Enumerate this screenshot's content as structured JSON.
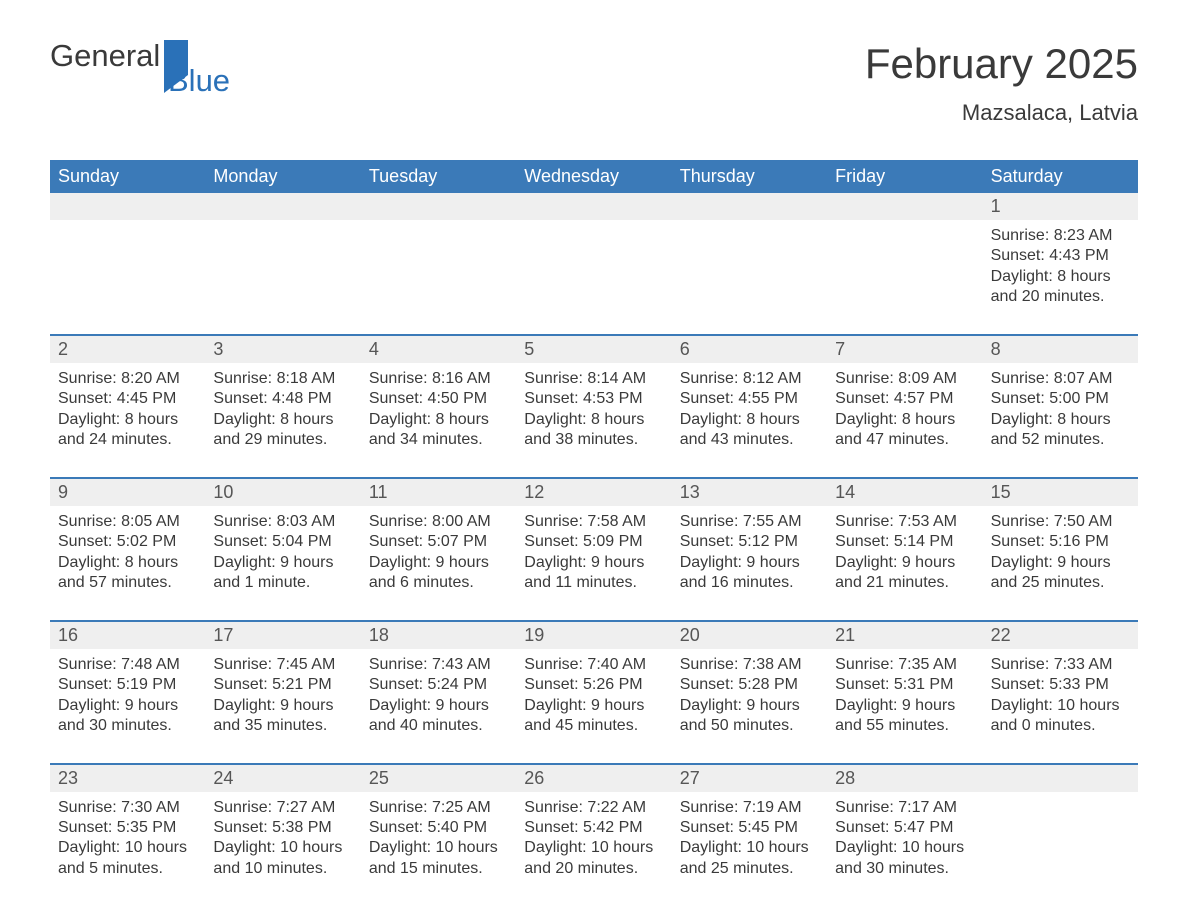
{
  "brand": {
    "word1": "General",
    "word2": "Blue"
  },
  "title": "February 2025",
  "location": "Mazsalaca, Latvia",
  "colors": {
    "header_bg": "#3b7ab8",
    "header_text": "#ffffff",
    "rule": "#3b7ab8",
    "daynum_bg": "#efefef",
    "text": "#3a3a3a"
  },
  "dow": [
    "Sunday",
    "Monday",
    "Tuesday",
    "Wednesday",
    "Thursday",
    "Friday",
    "Saturday"
  ],
  "weeks": [
    [
      null,
      null,
      null,
      null,
      null,
      null,
      {
        "n": "1",
        "sunrise": "8:23 AM",
        "sunset": "4:43 PM",
        "dl1": "Daylight: 8 hours",
        "dl2": "and 20 minutes."
      }
    ],
    [
      {
        "n": "2",
        "sunrise": "8:20 AM",
        "sunset": "4:45 PM",
        "dl1": "Daylight: 8 hours",
        "dl2": "and 24 minutes."
      },
      {
        "n": "3",
        "sunrise": "8:18 AM",
        "sunset": "4:48 PM",
        "dl1": "Daylight: 8 hours",
        "dl2": "and 29 minutes."
      },
      {
        "n": "4",
        "sunrise": "8:16 AM",
        "sunset": "4:50 PM",
        "dl1": "Daylight: 8 hours",
        "dl2": "and 34 minutes."
      },
      {
        "n": "5",
        "sunrise": "8:14 AM",
        "sunset": "4:53 PM",
        "dl1": "Daylight: 8 hours",
        "dl2": "and 38 minutes."
      },
      {
        "n": "6",
        "sunrise": "8:12 AM",
        "sunset": "4:55 PM",
        "dl1": "Daylight: 8 hours",
        "dl2": "and 43 minutes."
      },
      {
        "n": "7",
        "sunrise": "8:09 AM",
        "sunset": "4:57 PM",
        "dl1": "Daylight: 8 hours",
        "dl2": "and 47 minutes."
      },
      {
        "n": "8",
        "sunrise": "8:07 AM",
        "sunset": "5:00 PM",
        "dl1": "Daylight: 8 hours",
        "dl2": "and 52 minutes."
      }
    ],
    [
      {
        "n": "9",
        "sunrise": "8:05 AM",
        "sunset": "5:02 PM",
        "dl1": "Daylight: 8 hours",
        "dl2": "and 57 minutes."
      },
      {
        "n": "10",
        "sunrise": "8:03 AM",
        "sunset": "5:04 PM",
        "dl1": "Daylight: 9 hours",
        "dl2": "and 1 minute."
      },
      {
        "n": "11",
        "sunrise": "8:00 AM",
        "sunset": "5:07 PM",
        "dl1": "Daylight: 9 hours",
        "dl2": "and 6 minutes."
      },
      {
        "n": "12",
        "sunrise": "7:58 AM",
        "sunset": "5:09 PM",
        "dl1": "Daylight: 9 hours",
        "dl2": "and 11 minutes."
      },
      {
        "n": "13",
        "sunrise": "7:55 AM",
        "sunset": "5:12 PM",
        "dl1": "Daylight: 9 hours",
        "dl2": "and 16 minutes."
      },
      {
        "n": "14",
        "sunrise": "7:53 AM",
        "sunset": "5:14 PM",
        "dl1": "Daylight: 9 hours",
        "dl2": "and 21 minutes."
      },
      {
        "n": "15",
        "sunrise": "7:50 AM",
        "sunset": "5:16 PM",
        "dl1": "Daylight: 9 hours",
        "dl2": "and 25 minutes."
      }
    ],
    [
      {
        "n": "16",
        "sunrise": "7:48 AM",
        "sunset": "5:19 PM",
        "dl1": "Daylight: 9 hours",
        "dl2": "and 30 minutes."
      },
      {
        "n": "17",
        "sunrise": "7:45 AM",
        "sunset": "5:21 PM",
        "dl1": "Daylight: 9 hours",
        "dl2": "and 35 minutes."
      },
      {
        "n": "18",
        "sunrise": "7:43 AM",
        "sunset": "5:24 PM",
        "dl1": "Daylight: 9 hours",
        "dl2": "and 40 minutes."
      },
      {
        "n": "19",
        "sunrise": "7:40 AM",
        "sunset": "5:26 PM",
        "dl1": "Daylight: 9 hours",
        "dl2": "and 45 minutes."
      },
      {
        "n": "20",
        "sunrise": "7:38 AM",
        "sunset": "5:28 PM",
        "dl1": "Daylight: 9 hours",
        "dl2": "and 50 minutes."
      },
      {
        "n": "21",
        "sunrise": "7:35 AM",
        "sunset": "5:31 PM",
        "dl1": "Daylight: 9 hours",
        "dl2": "and 55 minutes."
      },
      {
        "n": "22",
        "sunrise": "7:33 AM",
        "sunset": "5:33 PM",
        "dl1": "Daylight: 10 hours",
        "dl2": "and 0 minutes."
      }
    ],
    [
      {
        "n": "23",
        "sunrise": "7:30 AM",
        "sunset": "5:35 PM",
        "dl1": "Daylight: 10 hours",
        "dl2": "and 5 minutes."
      },
      {
        "n": "24",
        "sunrise": "7:27 AM",
        "sunset": "5:38 PM",
        "dl1": "Daylight: 10 hours",
        "dl2": "and 10 minutes."
      },
      {
        "n": "25",
        "sunrise": "7:25 AM",
        "sunset": "5:40 PM",
        "dl1": "Daylight: 10 hours",
        "dl2": "and 15 minutes."
      },
      {
        "n": "26",
        "sunrise": "7:22 AM",
        "sunset": "5:42 PM",
        "dl1": "Daylight: 10 hours",
        "dl2": "and 20 minutes."
      },
      {
        "n": "27",
        "sunrise": "7:19 AM",
        "sunset": "5:45 PM",
        "dl1": "Daylight: 10 hours",
        "dl2": "and 25 minutes."
      },
      {
        "n": "28",
        "sunrise": "7:17 AM",
        "sunset": "5:47 PM",
        "dl1": "Daylight: 10 hours",
        "dl2": "and 30 minutes."
      },
      null
    ]
  ],
  "labels": {
    "sunrise_prefix": "Sunrise: ",
    "sunset_prefix": "Sunset: "
  }
}
